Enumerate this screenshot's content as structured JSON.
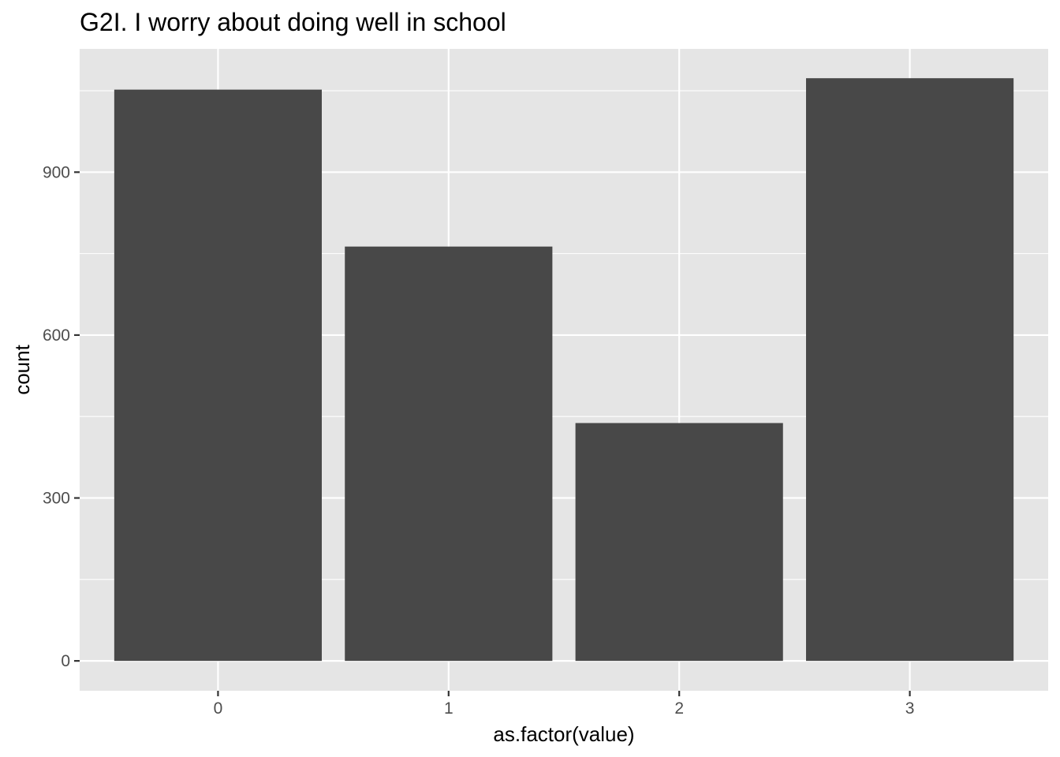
{
  "chart_data": {
    "type": "bar",
    "title": "G2I. I worry about doing well in school",
    "xlabel": "as.factor(value)",
    "ylabel": "count",
    "categories": [
      "0",
      "1",
      "2",
      "3"
    ],
    "values": [
      1052,
      763,
      438,
      1073
    ],
    "ylim": [
      -55,
      1127
    ],
    "yticks": [
      0,
      300,
      600,
      900
    ],
    "yticks_labels": [
      "0",
      "300",
      "600",
      "900"
    ],
    "grid": true,
    "legend": "none",
    "colors": {
      "bar": "#484848",
      "panel": "#e5e5e5",
      "grid": "#ffffff",
      "tick_text": "#4d4d4d",
      "tick_mark": "#333333"
    }
  }
}
